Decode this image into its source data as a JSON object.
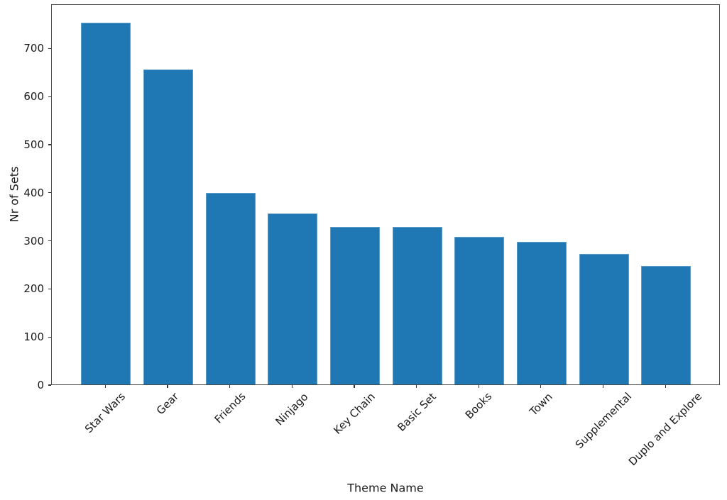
{
  "figure": {
    "background": "#ffffff",
    "spine_color": "#4a4a4a",
    "text_color": "#1a1a1a"
  },
  "chart_data": {
    "type": "bar",
    "title": "",
    "xlabel": "Theme Name",
    "ylabel": "Nr of Sets",
    "categories": [
      "Star Wars",
      "Gear",
      "Friends",
      "Ninjago",
      "Key Chain",
      "Basic Set",
      "Books",
      "Town",
      "Supplemental",
      "Duplo and Explore"
    ],
    "values": [
      752,
      655,
      398,
      355,
      328,
      327,
      307,
      297,
      272,
      247
    ],
    "bar_color": "#1f77b4",
    "bar_edge_color": "#5f9ec9",
    "ylim": [
      0,
      792
    ],
    "yticks": [
      0,
      100,
      200,
      300,
      400,
      500,
      600,
      700
    ],
    "xtick_rotation": 45,
    "grid": false,
    "legend": null
  }
}
